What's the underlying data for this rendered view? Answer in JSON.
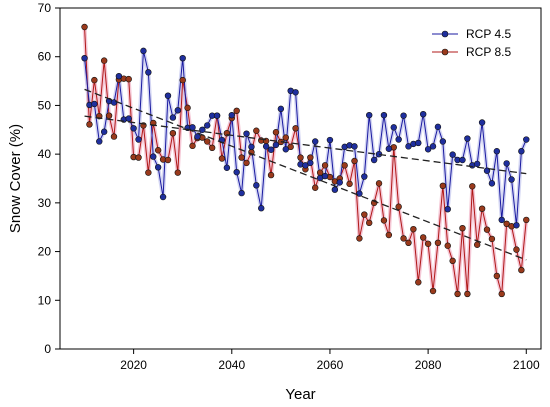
{
  "chart_data": {
    "type": "line",
    "xlabel": "Year",
    "ylabel": "Snow Cover (%)",
    "xlim": [
      2005,
      2103
    ],
    "ylim": [
      0,
      70
    ],
    "xticks": [
      2020,
      2040,
      2060,
      2080,
      2100
    ],
    "yticks": [
      0,
      10,
      20,
      30,
      40,
      50,
      60,
      70
    ],
    "grid": false,
    "legend_position": "top-right",
    "x": [
      2010,
      2011,
      2012,
      2013,
      2014,
      2015,
      2016,
      2017,
      2018,
      2019,
      2020,
      2021,
      2022,
      2023,
      2024,
      2025,
      2026,
      2027,
      2028,
      2029,
      2030,
      2031,
      2032,
      2033,
      2034,
      2035,
      2036,
      2037,
      2038,
      2039,
      2040,
      2041,
      2042,
      2043,
      2044,
      2045,
      2046,
      2047,
      2048,
      2049,
      2050,
      2051,
      2052,
      2053,
      2054,
      2055,
      2056,
      2057,
      2058,
      2059,
      2060,
      2061,
      2062,
      2063,
      2064,
      2065,
      2066,
      2067,
      2068,
      2069,
      2070,
      2071,
      2072,
      2073,
      2074,
      2075,
      2076,
      2077,
      2078,
      2079,
      2080,
      2081,
      2082,
      2083,
      2084,
      2085,
      2086,
      2087,
      2088,
      2089,
      2090,
      2091,
      2092,
      2093,
      2094,
      2095,
      2096,
      2097,
      2098,
      2099,
      2100
    ],
    "series": [
      {
        "name": "RCP 4.5",
        "color": "#1a1aa0",
        "marker_color": "#1f2f9e",
        "values": [
          59.7,
          50.1,
          50.3,
          42.6,
          44.6,
          50.9,
          50.6,
          56.0,
          47.1,
          47.3,
          45.3,
          43.0,
          61.2,
          56.8,
          39.5,
          37.3,
          31.2,
          52.0,
          47.5,
          49.0,
          59.7,
          45.4,
          45.5,
          43.6,
          45.0,
          45.9,
          47.9,
          47.9,
          42.9,
          37.2,
          48.0,
          36.3,
          32.0,
          44.2,
          41.5,
          33.6,
          28.9,
          41.6,
          40.9,
          41.9,
          49.3,
          41.0,
          53.0,
          52.7,
          37.9,
          37.7,
          38.2,
          42.6,
          35.1,
          35.5,
          42.9,
          32.7,
          34.2,
          41.5,
          41.8,
          41.6,
          31.9,
          35.4,
          48.0,
          38.8,
          40.0,
          48.0,
          41.1,
          45.5,
          43.0,
          47.9,
          41.6,
          42.1,
          42.3,
          48.2,
          41.0,
          41.6,
          45.6,
          42.6,
          28.7,
          39.9,
          38.8,
          38.8,
          43.2,
          37.7,
          38.0,
          46.5,
          36.6,
          34.0,
          40.6,
          26.5,
          38.1,
          34.8,
          25.4,
          40.6,
          43.0
        ]
      },
      {
        "name": "RCP 8.5",
        "color": "#b01818",
        "marker_color": "#9a3a1c",
        "values": [
          66.1,
          46.1,
          55.2,
          47.8,
          59.2,
          47.9,
          43.6,
          55.3,
          55.5,
          55.4,
          39.4,
          39.3,
          45.9,
          36.2,
          46.4,
          40.8,
          38.9,
          38.8,
          44.3,
          36.2,
          55.2,
          49.5,
          41.7,
          43.3,
          43.4,
          42.6,
          41.3,
          47.9,
          39.1,
          44.3,
          47.4,
          48.9,
          39.3,
          38.2,
          40.4,
          44.8,
          42.8,
          42.7,
          35.7,
          44.5,
          42.5,
          43.4,
          41.5,
          45.3,
          39.3,
          36.9,
          39.3,
          33.1,
          36.2,
          37.7,
          35.3,
          34.4,
          35.0,
          37.7,
          33.9,
          38.6,
          22.7,
          27.6,
          25.9,
          30.0,
          34.0,
          26.4,
          23.4,
          41.4,
          29.2,
          22.7,
          21.8,
          24.6,
          13.7,
          22.9,
          21.6,
          11.9,
          21.8,
          33.5,
          21.2,
          18.1,
          11.3,
          24.8,
          11.3,
          33.4,
          21.4,
          28.8,
          24.5,
          22.6,
          15.0,
          11.3,
          25.7,
          25.2,
          20.4,
          16.2,
          26.5
        ]
      }
    ],
    "trendlines": [
      {
        "series": "RCP 4.5",
        "style": "dashed",
        "x": [
          2010,
          2100
        ],
        "y": [
          47.8,
          36.0
        ]
      },
      {
        "series": "RCP 8.5",
        "style": "dashed",
        "x": [
          2010,
          2100
        ],
        "y": [
          53.3,
          18.3
        ]
      }
    ]
  }
}
